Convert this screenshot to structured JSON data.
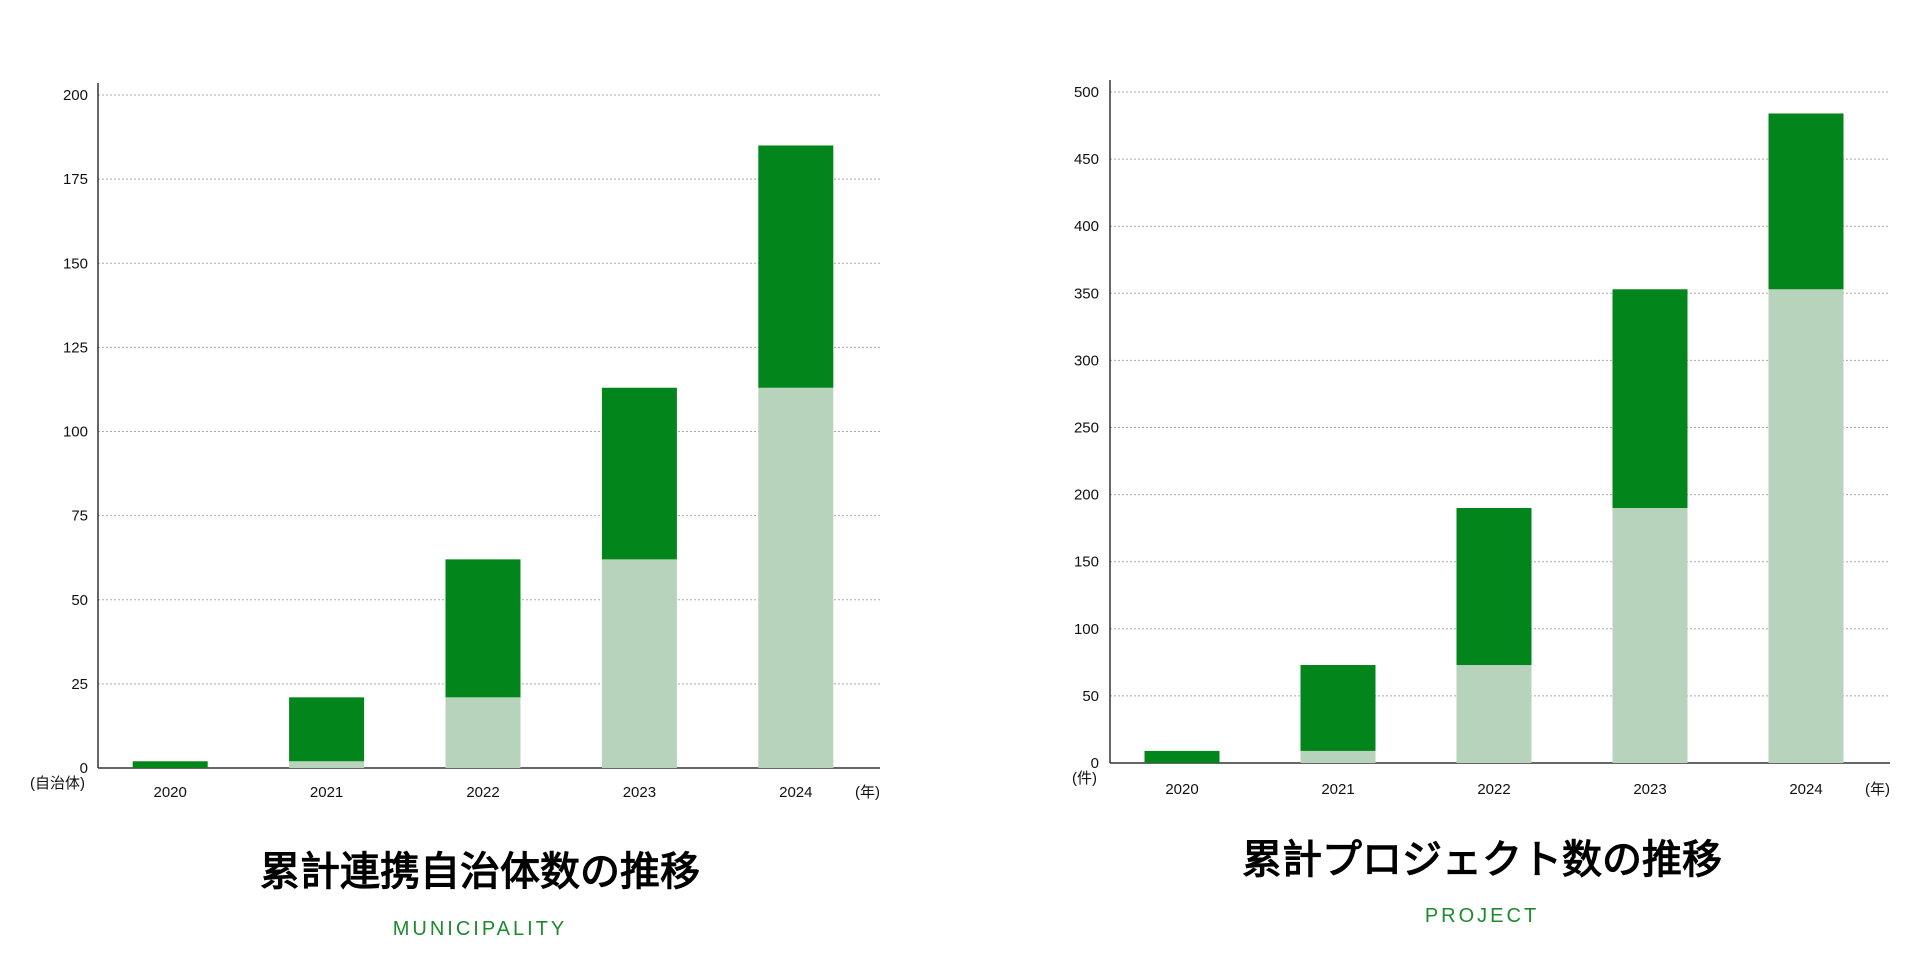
{
  "colors": {
    "new": "#02851a",
    "previous": "#b7d3bc",
    "axis": "#333333",
    "grid": "#aaaaaa",
    "subtitle": "#1d8a2e"
  },
  "chart_data": [
    {
      "type": "bar",
      "stacked": true,
      "title": "累計連携自治体数の推移",
      "subtitle": "MUNICIPALITY",
      "x_unit": "(年)",
      "y_unit": "(自治体)",
      "categories": [
        "2020",
        "2021",
        "2022",
        "2023",
        "2024"
      ],
      "ylim": [
        0,
        200
      ],
      "yticks": [
        0,
        25,
        50,
        75,
        100,
        125,
        150,
        175,
        200
      ],
      "grid": true,
      "series": [
        {
          "role": "previous",
          "values": [
            0,
            2,
            21,
            62,
            113
          ]
        },
        {
          "role": "new",
          "values": [
            2,
            19,
            41,
            51,
            72
          ]
        }
      ]
    },
    {
      "type": "bar",
      "stacked": true,
      "title": "累計プロジェクト数の推移",
      "subtitle": "PROJECT",
      "x_unit": "(年)",
      "y_unit": "(件)",
      "categories": [
        "2020",
        "2021",
        "2022",
        "2023",
        "2024"
      ],
      "ylim": [
        0,
        500
      ],
      "yticks": [
        0,
        50,
        100,
        150,
        200,
        250,
        300,
        350,
        400,
        450,
        500
      ],
      "grid": true,
      "series": [
        {
          "role": "previous",
          "values": [
            0,
            9,
            73,
            190,
            353
          ]
        },
        {
          "role": "new",
          "values": [
            9,
            64,
            117,
            163,
            131
          ]
        }
      ]
    }
  ]
}
